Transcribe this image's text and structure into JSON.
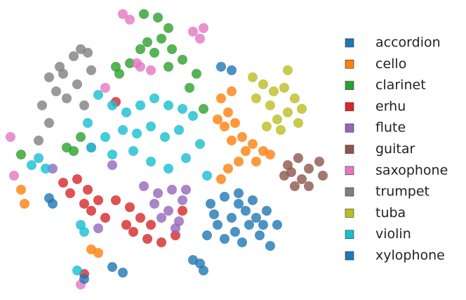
{
  "chart_data": {
    "type": "scatter",
    "xlim": [
      0,
      470
    ],
    "ylim": [
      0,
      427
    ],
    "legend": "right",
    "series": [
      {
        "name": "accordion",
        "color": "#1f77b4",
        "x": [
          300,
          320,
          340,
          360,
          380,
          395,
          350,
          330,
          310,
          295,
          320,
          345,
          370,
          385,
          355,
          335,
          365,
          305,
          340,
          375
        ],
        "values": [
          137,
          147,
          152,
          142,
          127,
          107,
          127,
          117,
          107,
          92,
          87,
          82,
          92,
          77,
          107,
          97,
          117,
          122,
          137,
          107
        ]
      },
      {
        "name": "cello",
        "color": "#ff7f0e",
        "x": [
          315,
          325,
          335,
          320,
          330,
          345,
          360,
          375,
          350,
          340,
          325,
          315,
          365,
          385,
          330,
          310,
          30,
          35,
          130,
          140
        ],
        "values": [
          287,
          267,
          252,
          247,
          227,
          232,
          222,
          212,
          212,
          197,
          187,
          172,
          197,
          207,
          297,
          257,
          157,
          137,
          72,
          67
        ]
      },
      {
        "name": "clarinet",
        "color": "#2ca02c",
        "x": [
          205,
          225,
          240,
          230,
          210,
          200,
          220,
          245,
          260,
          185,
          165,
          170,
          280,
          270,
          240,
          30,
          95,
          105,
          290,
          115
        ],
        "values": [
          407,
          402,
          387,
          372,
          367,
          357,
          352,
          357,
          342,
          337,
          332,
          322,
          322,
          302,
          332,
          207,
          217,
          212,
          272,
          232
        ]
      },
      {
        "name": "erhu",
        "color": "#d62728",
        "x": [
          90,
          110,
          125,
          100,
          140,
          130,
          165,
          185,
          200,
          190,
          210,
          230,
          250,
          215,
          180,
          150,
          120,
          260,
          165,
          120
        ],
        "values": [
          167,
          172,
          157,
          152,
          142,
          127,
          142,
          132,
          117,
          97,
          87,
          82,
          92,
          107,
          107,
          117,
          137,
          127,
          282,
          37
        ]
      },
      {
        "name": "flute",
        "color": "#9467bd",
        "x": [
          205,
          225,
          245,
          260,
          240,
          255,
          230,
          220,
          250,
          265,
          160,
          140,
          75,
          130
        ],
        "values": [
          162,
          152,
          157,
          142,
          127,
          112,
          117,
          137,
          102,
          157,
          192,
          102,
          187,
          217
        ]
      },
      {
        "name": "guitar",
        "color": "#8c564b",
        "x": [
          410,
          425,
          440,
          455,
          430,
          420,
          440,
          405,
          460,
          415
        ],
        "values": [
          192,
          202,
          187,
          197,
          172,
          162,
          162,
          177,
          177,
          182
        ]
      },
      {
        "name": "saxophone",
        "color": "#e377c2",
        "x": [
          175,
          185,
          275,
          290,
          285,
          200,
          215,
          195,
          15,
          20,
          115,
          150
        ],
        "values": [
          407,
          399,
          382,
          387,
          372,
          332,
          327,
          337,
          232,
          177,
          22,
          302
        ]
      },
      {
        "name": "trumpet",
        "color": "#7f7f7f",
        "x": [
          115,
          125,
          105,
          85,
          70,
          80,
          95,
          110,
          120,
          60,
          70,
          55,
          90,
          130
        ],
        "values": [
          357,
          352,
          347,
          332,
          317,
          297,
          287,
          307,
          277,
          277,
          252,
          227,
          322,
          327
        ]
      },
      {
        "name": "tuba",
        "color": "#bcbd22",
        "x": [
          360,
          375,
          390,
          405,
          420,
          410,
          395,
          380,
          400,
          425,
          430,
          410,
          385,
          365
        ],
        "values": [
          317,
          307,
          297,
          302,
          287,
          267,
          257,
          247,
          242,
          252,
          272,
          327,
          277,
          287
        ]
      },
      {
        "name": "violin",
        "color": "#17becf",
        "x": [
          140,
          160,
          180,
          200,
          220,
          240,
          260,
          275,
          255,
          235,
          215,
          195,
          175,
          150,
          130,
          160,
          190,
          215,
          240,
          265,
          285,
          125,
          55,
          65,
          45,
          115,
          120,
          295,
          110
        ],
        "values": [
          292,
          277,
          267,
          277,
          287,
          277,
          272,
          262,
          242,
          232,
          247,
          237,
          242,
          232,
          217,
          207,
          212,
          197,
          187,
          202,
          222,
          252,
          202,
          187,
          192,
          107,
          97,
          177,
          42
        ]
      },
      {
        "name": "xylophone",
        "color": "#1f77b4",
        "x": [
          315,
          330,
          275,
          290,
          285,
          160,
          175,
          70,
          75,
          120
        ],
        "values": [
          332,
          327,
          57,
          42,
          52,
          47,
          39,
          145,
          137,
          30
        ]
      }
    ]
  }
}
